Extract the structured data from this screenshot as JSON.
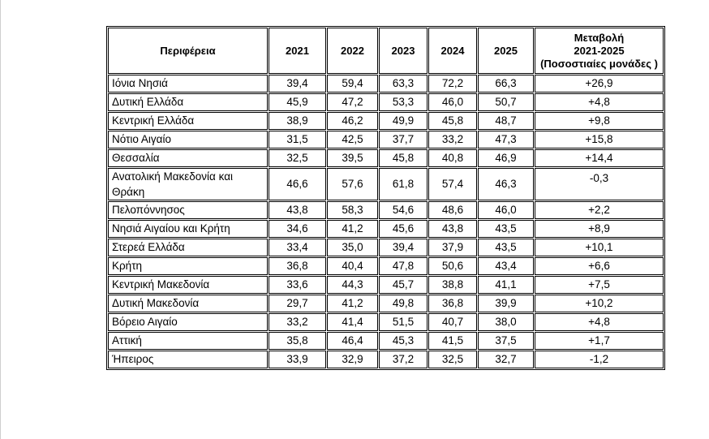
{
  "table": {
    "headers": {
      "region": "Περιφέρεια",
      "years": [
        "2021",
        "2022",
        "2023",
        "2024",
        "2025"
      ],
      "change_line1": "Μεταβολή",
      "change_line2": "2021-2025",
      "change_line3": "(Ποσοστιαίες μονάδες  )"
    },
    "rows": [
      {
        "region": "Ιόνια Νησιά",
        "values": [
          "39,4",
          "59,4",
          "63,3",
          "72,2",
          "66,3"
        ],
        "change": "+26,9"
      },
      {
        "region": "Δυτική Ελλάδα",
        "values": [
          "45,9",
          "47,2",
          "53,3",
          "46,0",
          "50,7"
        ],
        "change": "+4,8"
      },
      {
        "region": "Κεντρική Ελλάδα",
        "values": [
          "38,9",
          "46,2",
          "49,9",
          "45,8",
          "48,7"
        ],
        "change": "+9,8"
      },
      {
        "region": "Νότιο Αιγαίο",
        "values": [
          "31,5",
          "42,5",
          "37,7",
          "33,2",
          "47,3"
        ],
        "change": "+15,8"
      },
      {
        "region": "Θεσσαλία",
        "values": [
          "32,5",
          "39,5",
          "45,8",
          "40,8",
          "46,9"
        ],
        "change": "+14,4"
      },
      {
        "region": "Ανατολική Μακεδονία και Θράκη",
        "values": [
          "46,6",
          "57,6",
          "61,8",
          "57,4",
          "46,3"
        ],
        "change": "-0,3"
      },
      {
        "region": "Πελοπόννησος",
        "values": [
          "43,8",
          "58,3",
          "54,6",
          "48,6",
          "46,0"
        ],
        "change": "+2,2"
      },
      {
        "region": "Νησιά Αιγαίου και Κρήτη",
        "values": [
          "34,6",
          "41,2",
          "45,6",
          "43,8",
          "43,5"
        ],
        "change": "+8,9"
      },
      {
        "region": "Στερεά Ελλάδα",
        "values": [
          "33,4",
          "35,0",
          "39,4",
          "37,9",
          "43,5"
        ],
        "change": "+10,1"
      },
      {
        "region": "Κρήτη",
        "values": [
          "36,8",
          "40,4",
          "47,8",
          "50,6",
          "43,4"
        ],
        "change": "+6,6"
      },
      {
        "region": "Κεντρική Μακεδονία",
        "values": [
          "33,6",
          "44,3",
          "45,7",
          "38,8",
          "41,1"
        ],
        "change": "+7,5"
      },
      {
        "region": "Δυτική Μακεδονία",
        "values": [
          "29,7",
          "41,2",
          "49,8",
          "36,8",
          "39,9"
        ],
        "change": "+10,2"
      },
      {
        "region": "Βόρειο Αιγαίο",
        "values": [
          "33,2",
          "41,4",
          "51,5",
          "40,7",
          "38,0"
        ],
        "change": "+4,8"
      },
      {
        "region": "Αττική",
        "values": [
          "35,8",
          "46,4",
          "45,3",
          "41,5",
          "37,5"
        ],
        "change": "+1,7"
      },
      {
        "region": "Ήπειρος",
        "values": [
          "33,9",
          "32,9",
          "37,2",
          "32,5",
          "32,7"
        ],
        "change": "-1,2"
      }
    ]
  }
}
